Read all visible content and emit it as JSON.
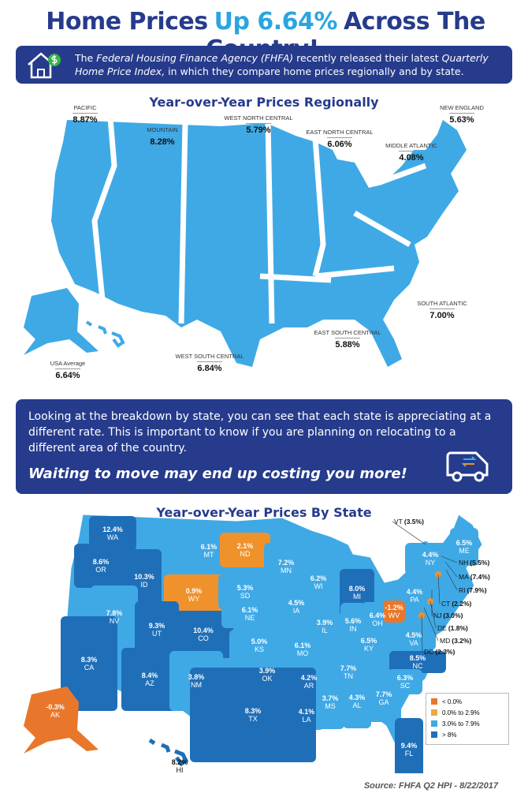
{
  "header": {
    "title_start": "Home Prices",
    "title_highlight": "Up 6.64%",
    "title_end": "Across The Country!"
  },
  "intro": {
    "parts": [
      "The ",
      "Federal Housing Finance Agency (FHFA)",
      " recently released their latest ",
      "Quarterly Home Price Index,",
      " in which they compare home prices regionally and by state."
    ]
  },
  "regional": {
    "title": "Year-over-Year Prices Regionally",
    "regions": [
      {
        "label": "PACIFIC",
        "value": "8.87%"
      },
      {
        "label": "MOUNTAIN",
        "value": "8.28%"
      },
      {
        "label": "WEST NORTH CENTRAL",
        "value": "5.79%"
      },
      {
        "label": "EAST NORTH CENTRAL",
        "value": "6.06%"
      },
      {
        "label": "MIDDLE ATLANTIC",
        "value": "4.08%"
      },
      {
        "label": "NEW ENGLAND",
        "value": "5.63%"
      },
      {
        "label": "SOUTH ATLANTIC",
        "value": "7.00%"
      },
      {
        "label": "EAST SOUTH CENTRAL",
        "value": "5.88%"
      },
      {
        "label": "WEST SOUTH CENTRAL",
        "value": "6.84%"
      },
      {
        "label": "USA Average",
        "value": "6.64%"
      }
    ]
  },
  "message": {
    "text": "Looking at the breakdown by state, you can see that each state is appreciating at a different rate. This is important to know if you are planning on relocating to a different area of the country.",
    "emphasis": "Waiting to move may end up costing you more!"
  },
  "states": {
    "title": "Year-over-Year Prices By State",
    "items": [
      {
        "abbr": "WA",
        "value": "12.4%",
        "color": "#1f6fb8"
      },
      {
        "abbr": "OR",
        "value": "8.6%",
        "color": "#1f6fb8"
      },
      {
        "abbr": "ID",
        "value": "10.3%",
        "color": "#1f6fb8"
      },
      {
        "abbr": "MT",
        "value": "6.1%",
        "color": "#3fa9e6"
      },
      {
        "abbr": "ND",
        "value": "2.1%",
        "color": "#f0922b"
      },
      {
        "abbr": "WY",
        "value": "0.9%",
        "color": "#f0922b"
      },
      {
        "abbr": "SD",
        "value": "5.3%",
        "color": "#3fa9e6"
      },
      {
        "abbr": "MN",
        "value": "7.2%",
        "color": "#3fa9e6"
      },
      {
        "abbr": "WI",
        "value": "6.2%",
        "color": "#3fa9e6"
      },
      {
        "abbr": "MI",
        "value": "8.0%",
        "color": "#1f6fb8"
      },
      {
        "abbr": "NV",
        "value": "7.8%",
        "color": "#3fa9e6"
      },
      {
        "abbr": "UT",
        "value": "9.3%",
        "color": "#1f6fb8"
      },
      {
        "abbr": "CO",
        "value": "10.4%",
        "color": "#1f6fb8"
      },
      {
        "abbr": "NE",
        "value": "6.1%",
        "color": "#3fa9e6"
      },
      {
        "abbr": "IA",
        "value": "4.5%",
        "color": "#3fa9e6"
      },
      {
        "abbr": "IL",
        "value": "3.9%",
        "color": "#3fa9e6"
      },
      {
        "abbr": "IN",
        "value": "5.6%",
        "color": "#3fa9e6"
      },
      {
        "abbr": "OH",
        "value": "6.4%",
        "color": "#3fa9e6"
      },
      {
        "abbr": "PA",
        "value": "4.4%",
        "color": "#3fa9e6"
      },
      {
        "abbr": "NY",
        "value": "4.4%",
        "color": "#3fa9e6"
      },
      {
        "abbr": "ME",
        "value": "6.5%",
        "color": "#3fa9e6"
      },
      {
        "abbr": "CA",
        "value": "8.3%",
        "color": "#1f6fb8"
      },
      {
        "abbr": "KS",
        "value": "5.0%",
        "color": "#3fa9e6"
      },
      {
        "abbr": "MO",
        "value": "6.1%",
        "color": "#3fa9e6"
      },
      {
        "abbr": "KY",
        "value": "6.5%",
        "color": "#3fa9e6"
      },
      {
        "abbr": "WV",
        "value": "-1.2%",
        "color": "#e9772b"
      },
      {
        "abbr": "VA",
        "value": "4.5%",
        "color": "#3fa9e6"
      },
      {
        "abbr": "NC",
        "value": "8.5%",
        "color": "#1f6fb8"
      },
      {
        "abbr": "TN",
        "value": "7.7%",
        "color": "#3fa9e6"
      },
      {
        "abbr": "OK",
        "value": "3.9%",
        "color": "#3fa9e6"
      },
      {
        "abbr": "AR",
        "value": "4.2%",
        "color": "#3fa9e6"
      },
      {
        "abbr": "AZ",
        "value": "8.4%",
        "color": "#1f6fb8"
      },
      {
        "abbr": "NM",
        "value": "3.8%",
        "color": "#3fa9e6"
      },
      {
        "abbr": "SC",
        "value": "6.3%",
        "color": "#3fa9e6"
      },
      {
        "abbr": "GA",
        "value": "7.7%",
        "color": "#3fa9e6"
      },
      {
        "abbr": "AL",
        "value": "4.3%",
        "color": "#3fa9e6"
      },
      {
        "abbr": "MS",
        "value": "3.7%",
        "color": "#3fa9e6"
      },
      {
        "abbr": "LA",
        "value": "4.1%",
        "color": "#3fa9e6"
      },
      {
        "abbr": "TX",
        "value": "8.3%",
        "color": "#1f6fb8"
      },
      {
        "abbr": "FL",
        "value": "9.4%",
        "color": "#1f6fb8"
      },
      {
        "abbr": "AK",
        "value": "-0.3%",
        "color": "#e9772b"
      },
      {
        "abbr": "HI",
        "value": "8.2%",
        "color": "#1f6fb8"
      }
    ],
    "callouts": [
      {
        "abbr": "VT",
        "value": "(3.5%)",
        "color": "#3fa9e6"
      },
      {
        "abbr": "NH",
        "value": "(5.5%)",
        "color": "#3fa9e6"
      },
      {
        "abbr": "MA",
        "value": "(7.4%)",
        "color": "#3fa9e6"
      },
      {
        "abbr": "RI",
        "value": "(7.9%)",
        "color": "#3fa9e6"
      },
      {
        "abbr": "CT",
        "value": "(2.2%)",
        "color": "#f0922b"
      },
      {
        "abbr": "NJ",
        "value": "(3.0%)",
        "color": "#3fa9e6"
      },
      {
        "abbr": "DE",
        "value": "(1.8%)",
        "color": "#f0922b"
      },
      {
        "abbr": "MD",
        "value": "(3.2%)",
        "color": "#3fa9e6"
      },
      {
        "abbr": "DC",
        "value": "(2.3%)",
        "color": "#f0922b"
      }
    ],
    "legend": [
      {
        "label": "< 0.0%",
        "color": "#e9772b"
      },
      {
        "label": "0.0% to 2.9%",
        "color": "#f0a54a"
      },
      {
        "label": "3.0% to 7.9%",
        "color": "#3fa9e6"
      },
      {
        "label": "> 8%",
        "color": "#1f6fb8"
      }
    ]
  },
  "source": "Source: FHFA Q2 HPI - 8/22/2017"
}
